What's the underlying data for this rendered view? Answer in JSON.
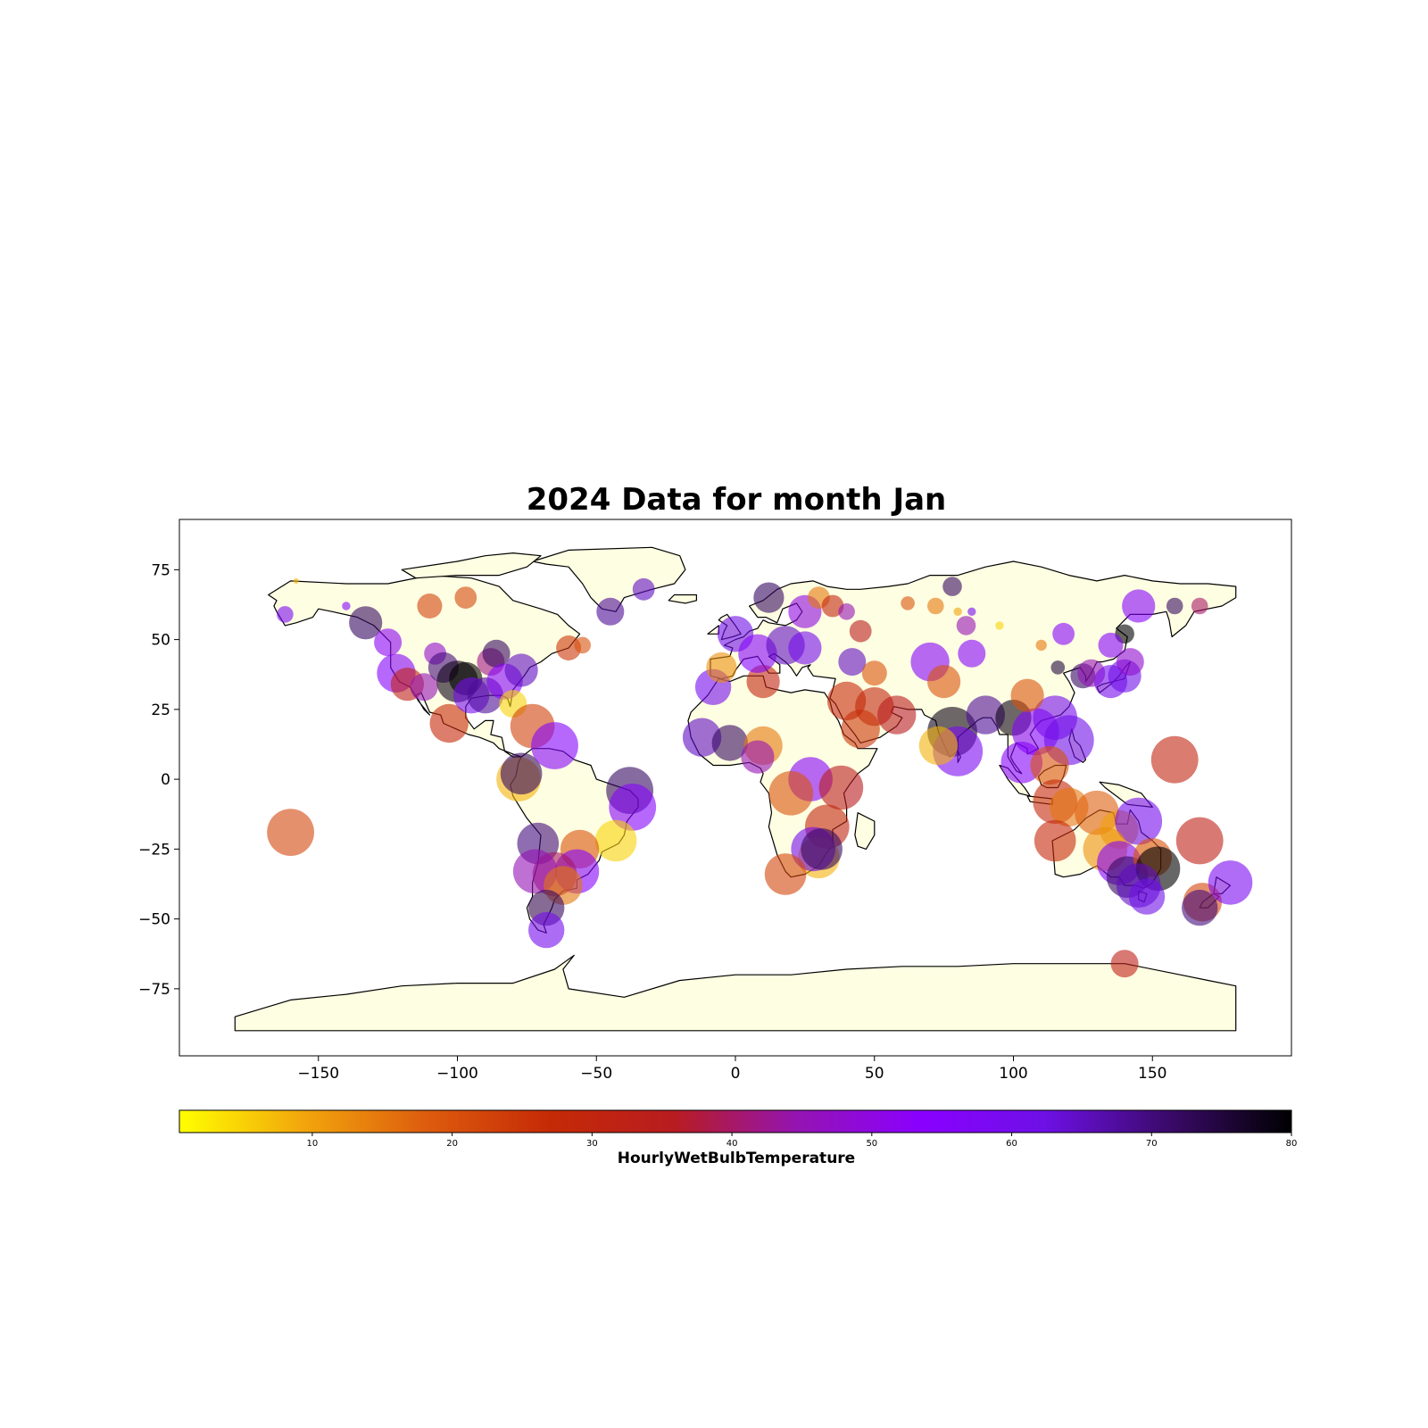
{
  "colors": {
    "land": "#fefee2",
    "coastline": "#000000",
    "colormap": [
      "#ffff00",
      "#f2a60c",
      "#dd5c0e",
      "#c52a06",
      "#b81c20",
      "#9414b2",
      "#8a00ff",
      "#6e10e6",
      "#3b0a6b",
      "#000000"
    ]
  },
  "chart_data": {
    "type": "scatter",
    "title": "2024 Data for month Jan",
    "xlabel": "",
    "ylabel": "",
    "xlim": [
      -200,
      200
    ],
    "ylim": [
      -99,
      93
    ],
    "xticks": [
      -150,
      -100,
      -50,
      0,
      50,
      100,
      150
    ],
    "yticks": [
      75,
      50,
      25,
      0,
      -25,
      -50,
      -75
    ],
    "xtick_labels": [
      "−150",
      "−100",
      "−50",
      "0",
      "50",
      "100",
      "150"
    ],
    "ytick_labels": [
      "75",
      "50",
      "25",
      "0",
      "−25",
      "−50",
      "−75"
    ],
    "grid": false,
    "colorbar": {
      "label": "HourlyWetBulbTemperature",
      "range": [
        0.5,
        80
      ],
      "ticks": [
        10,
        20,
        30,
        40,
        50,
        60,
        70,
        80
      ],
      "tick_labels": [
        "10",
        "20",
        "30",
        "40",
        "50",
        "60",
        "70",
        "80"
      ]
    },
    "points": [
      {
        "lon": -160,
        "lat": -19,
        "value": 22,
        "size": 17
      },
      {
        "lon": -162,
        "lat": 59,
        "value": 58,
        "size": 6
      },
      {
        "lon": -158,
        "lat": 71,
        "value": 8,
        "size": 2
      },
      {
        "lon": -140,
        "lat": 62,
        "value": 55,
        "size": 3
      },
      {
        "lon": -133,
        "lat": 56,
        "value": 72,
        "size": 12
      },
      {
        "lon": -125,
        "lat": 49,
        "value": 52,
        "size": 10
      },
      {
        "lon": -122,
        "lat": 38,
        "value": 55,
        "size": 14
      },
      {
        "lon": -118,
        "lat": 34,
        "value": 32,
        "size": 12
      },
      {
        "lon": -112,
        "lat": 33,
        "value": 45,
        "size": 10
      },
      {
        "lon": -110,
        "lat": 62,
        "value": 23,
        "size": 9
      },
      {
        "lon": -108,
        "lat": 45,
        "value": 48,
        "size": 8
      },
      {
        "lon": -105,
        "lat": 40,
        "value": 70,
        "size": 11
      },
      {
        "lon": -103,
        "lat": 20,
        "value": 28,
        "size": 14
      },
      {
        "lon": -100,
        "lat": 35,
        "value": 78,
        "size": 15
      },
      {
        "lon": -97,
        "lat": 36,
        "value": 80,
        "size": 12
      },
      {
        "lon": -97,
        "lat": 65,
        "value": 22,
        "size": 8
      },
      {
        "lon": -95,
        "lat": 30,
        "value": 60,
        "size": 13
      },
      {
        "lon": -90,
        "lat": 30,
        "value": 68,
        "size": 13
      },
      {
        "lon": -88,
        "lat": 42,
        "value": 42,
        "size": 10
      },
      {
        "lon": -86,
        "lat": 45,
        "value": 72,
        "size": 10
      },
      {
        "lon": -83,
        "lat": 35,
        "value": 55,
        "size": 13
      },
      {
        "lon": -80,
        "lat": 27,
        "value": 5,
        "size": 10
      },
      {
        "lon": -77,
        "lat": 39,
        "value": 65,
        "size": 12
      },
      {
        "lon": -73,
        "lat": 19,
        "value": 23,
        "size": 16
      },
      {
        "lon": -78,
        "lat": 0,
        "value": 8,
        "size": 16
      },
      {
        "lon": -77,
        "lat": 2,
        "value": 72,
        "size": 15
      },
      {
        "lon": -65,
        "lat": 12,
        "value": 55,
        "size": 17
      },
      {
        "lon": -60,
        "lat": 47,
        "value": 25,
        "size": 9
      },
      {
        "lon": -55,
        "lat": 48,
        "value": 20,
        "size": 6
      },
      {
        "lon": -45,
        "lat": 60,
        "value": 68,
        "size": 10
      },
      {
        "lon": -33,
        "lat": 68,
        "value": 65,
        "size": 8
      },
      {
        "lon": -38,
        "lat": -4,
        "value": 72,
        "size": 17
      },
      {
        "lon": -37,
        "lat": -10,
        "value": 55,
        "size": 17
      },
      {
        "lon": -43,
        "lat": -22,
        "value": 5,
        "size": 15
      },
      {
        "lon": -56,
        "lat": -25,
        "value": 20,
        "size": 14
      },
      {
        "lon": -71,
        "lat": -23,
        "value": 70,
        "size": 15
      },
      {
        "lon": -57,
        "lat": -33,
        "value": 55,
        "size": 16
      },
      {
        "lon": -65,
        "lat": -34,
        "value": 40,
        "size": 16
      },
      {
        "lon": -72,
        "lat": -33,
        "value": 45,
        "size": 16
      },
      {
        "lon": -62,
        "lat": -38,
        "value": 15,
        "size": 14
      },
      {
        "lon": -68,
        "lat": -46,
        "value": 72,
        "size": 13
      },
      {
        "lon": -68,
        "lat": -54,
        "value": 60,
        "size": 13
      },
      {
        "lon": -12,
        "lat": 15,
        "value": 65,
        "size": 14
      },
      {
        "lon": -2,
        "lat": 13,
        "value": 72,
        "size": 13
      },
      {
        "lon": 10,
        "lat": 12,
        "value": 15,
        "size": 14
      },
      {
        "lon": 8,
        "lat": 8,
        "value": 45,
        "size": 12
      },
      {
        "lon": -8,
        "lat": 33,
        "value": 60,
        "size": 13
      },
      {
        "lon": 10,
        "lat": 35,
        "value": 30,
        "size": 12
      },
      {
        "lon": -5,
        "lat": 40,
        "value": 12,
        "size": 11
      },
      {
        "lon": 0,
        "lat": 52,
        "value": 62,
        "size": 13
      },
      {
        "lon": 12,
        "lat": 65,
        "value": 72,
        "size": 11
      },
      {
        "lon": 8,
        "lat": 45,
        "value": 55,
        "size": 14
      },
      {
        "lon": 18,
        "lat": 48,
        "value": 65,
        "size": 14
      },
      {
        "lon": 25,
        "lat": 47,
        "value": 60,
        "size": 12
      },
      {
        "lon": 25,
        "lat": 60,
        "value": 50,
        "size": 12
      },
      {
        "lon": 30,
        "lat": 65,
        "value": 15,
        "size": 8
      },
      {
        "lon": 35,
        "lat": 62,
        "value": 30,
        "size": 8
      },
      {
        "lon": 40,
        "lat": 60,
        "value": 45,
        "size": 6
      },
      {
        "lon": 45,
        "lat": 53,
        "value": 35,
        "size": 8
      },
      {
        "lon": 42,
        "lat": 42,
        "value": 65,
        "size": 10
      },
      {
        "lon": 50,
        "lat": 38,
        "value": 20,
        "size": 9
      },
      {
        "lon": 50,
        "lat": 26,
        "value": 30,
        "size": 14
      },
      {
        "lon": 58,
        "lat": 23,
        "value": 35,
        "size": 14
      },
      {
        "lon": 45,
        "lat": 18,
        "value": 25,
        "size": 14
      },
      {
        "lon": 40,
        "lat": 28,
        "value": 28,
        "size": 14
      },
      {
        "lon": 27,
        "lat": 0,
        "value": 55,
        "size": 16
      },
      {
        "lon": 38,
        "lat": -3,
        "value": 35,
        "size": 16
      },
      {
        "lon": 20,
        "lat": -5,
        "value": 20,
        "size": 16
      },
      {
        "lon": 33,
        "lat": -17,
        "value": 30,
        "size": 16
      },
      {
        "lon": 30,
        "lat": -28,
        "value": 8,
        "size": 15
      },
      {
        "lon": 28,
        "lat": -25,
        "value": 60,
        "size": 16
      },
      {
        "lon": 31,
        "lat": -25,
        "value": 72,
        "size": 15
      },
      {
        "lon": 18,
        "lat": -34,
        "value": 22,
        "size": 15
      },
      {
        "lon": 70,
        "lat": 42,
        "value": 55,
        "size": 14
      },
      {
        "lon": 78,
        "lat": 69,
        "value": 72,
        "size": 7
      },
      {
        "lon": 62,
        "lat": 63,
        "value": 20,
        "size": 5
      },
      {
        "lon": 72,
        "lat": 62,
        "value": 15,
        "size": 6
      },
      {
        "lon": 80,
        "lat": 60,
        "value": 10,
        "size": 3
      },
      {
        "lon": 85,
        "lat": 45,
        "value": 55,
        "size": 10
      },
      {
        "lon": 83,
        "lat": 55,
        "value": 45,
        "size": 7
      },
      {
        "lon": 75,
        "lat": 35,
        "value": 20,
        "size": 12
      },
      {
        "lon": 78,
        "lat": 17,
        "value": 78,
        "size": 18
      },
      {
        "lon": 80,
        "lat": 10,
        "value": 58,
        "size": 18
      },
      {
        "lon": 73,
        "lat": 12,
        "value": 8,
        "size": 14
      },
      {
        "lon": 90,
        "lat": 23,
        "value": 68,
        "size": 14
      },
      {
        "lon": 100,
        "lat": 22,
        "value": 78,
        "size": 13
      },
      {
        "lon": 103,
        "lat": 6,
        "value": 55,
        "size": 15
      },
      {
        "lon": 108,
        "lat": 17,
        "value": 55,
        "size": 17
      },
      {
        "lon": 115,
        "lat": 22,
        "value": 60,
        "size": 16
      },
      {
        "lon": 120,
        "lat": 14,
        "value": 62,
        "size": 18
      },
      {
        "lon": 113,
        "lat": 5,
        "value": 20,
        "size": 14
      },
      {
        "lon": 115,
        "lat": -8,
        "value": 28,
        "size": 16
      },
      {
        "lon": 120,
        "lat": -10,
        "value": 15,
        "size": 14
      },
      {
        "lon": 130,
        "lat": -12,
        "value": 18,
        "size": 16
      },
      {
        "lon": 138,
        "lat": -18,
        "value": 10,
        "size": 14
      },
      {
        "lon": 115,
        "lat": -22,
        "value": 28,
        "size": 15
      },
      {
        "lon": 145,
        "lat": -15,
        "value": 60,
        "size": 17
      },
      {
        "lon": 133,
        "lat": -25,
        "value": 12,
        "size": 16
      },
      {
        "lon": 138,
        "lat": -30,
        "value": 55,
        "size": 16
      },
      {
        "lon": 141,
        "lat": -35,
        "value": 72,
        "size": 15
      },
      {
        "lon": 150,
        "lat": -28,
        "value": 20,
        "size": 14
      },
      {
        "lon": 152,
        "lat": -32,
        "value": 80,
        "size": 16
      },
      {
        "lon": 145,
        "lat": -38,
        "value": 65,
        "size": 16
      },
      {
        "lon": 148,
        "lat": -42,
        "value": 62,
        "size": 13
      },
      {
        "lon": 158,
        "lat": 7,
        "value": 30,
        "size": 17
      },
      {
        "lon": 167,
        "lat": -22,
        "value": 32,
        "size": 17
      },
      {
        "lon": 168,
        "lat": -44,
        "value": 22,
        "size": 14
      },
      {
        "lon": 167,
        "lat": -46,
        "value": 70,
        "size": 13
      },
      {
        "lon": 178,
        "lat": -37,
        "value": 58,
        "size": 16
      },
      {
        "lon": 140,
        "lat": -66,
        "value": 32,
        "size": 10
      },
      {
        "lon": 125,
        "lat": 37,
        "value": 72,
        "size": 9
      },
      {
        "lon": 128,
        "lat": 38,
        "value": 45,
        "size": 10
      },
      {
        "lon": 135,
        "lat": 35,
        "value": 60,
        "size": 12
      },
      {
        "lon": 140,
        "lat": 37,
        "value": 62,
        "size": 12
      },
      {
        "lon": 142,
        "lat": 42,
        "value": 48,
        "size": 10
      },
      {
        "lon": 140,
        "lat": 52,
        "value": 80,
        "size": 7
      },
      {
        "lon": 145,
        "lat": 62,
        "value": 55,
        "size": 12
      },
      {
        "lon": 158,
        "lat": 62,
        "value": 72,
        "size": 6
      },
      {
        "lon": 167,
        "lat": 62,
        "value": 40,
        "size": 6
      },
      {
        "lon": 135,
        "lat": 48,
        "value": 55,
        "size": 9
      },
      {
        "lon": 118,
        "lat": 52,
        "value": 55,
        "size": 8
      },
      {
        "lon": 110,
        "lat": 48,
        "value": 15,
        "size": 4
      },
      {
        "lon": 116,
        "lat": 40,
        "value": 75,
        "size": 5
      },
      {
        "lon": 105,
        "lat": 30,
        "value": 20,
        "size": 12
      },
      {
        "lon": 95,
        "lat": 55,
        "value": 5,
        "size": 3
      },
      {
        "lon": 85,
        "lat": 60,
        "value": 60,
        "size": 3
      }
    ]
  }
}
